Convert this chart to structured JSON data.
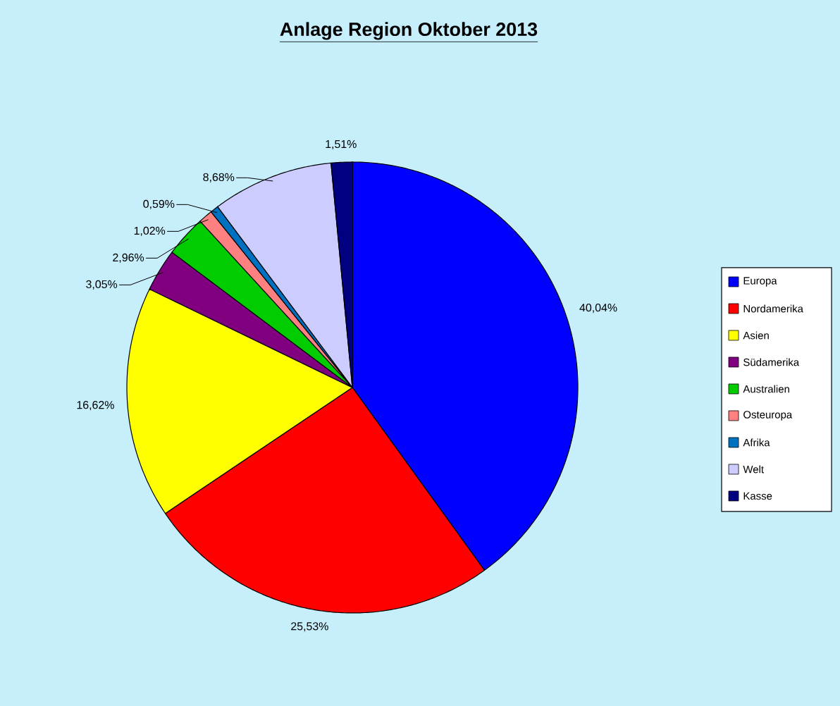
{
  "chart_data": {
    "type": "pie",
    "title": "Anlage Region Oktober 2013",
    "categories": [
      "Europa",
      "Nordamerika",
      "Asien",
      "Südamerika",
      "Australien",
      "Osteuropa",
      "Afrika",
      "Welt",
      "Kasse"
    ],
    "values": [
      40.04,
      25.53,
      16.62,
      3.05,
      2.96,
      1.02,
      0.59,
      8.68,
      1.51
    ],
    "colors": [
      "#0000ff",
      "#ff0000",
      "#ffff00",
      "#800080",
      "#00cc00",
      "#ff8080",
      "#0070c0",
      "#ccccff",
      "#000080"
    ],
    "value_labels": [
      "40,04%",
      "25,53%",
      "16,62%",
      "3,05%",
      "2,96%",
      "1,02%",
      "0,59%",
      "8,68%",
      "1,51%"
    ],
    "legend": "right"
  }
}
